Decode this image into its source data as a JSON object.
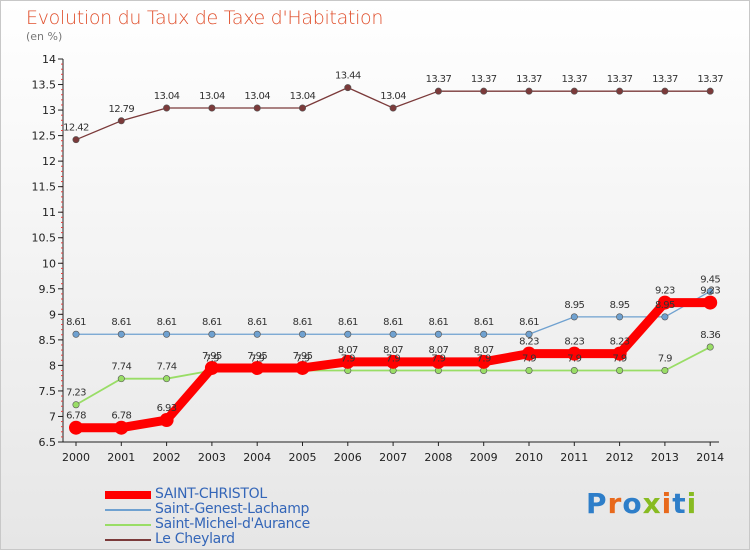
{
  "title": "Evolution du Taux de Taxe d'Habitation",
  "unit": "(en %)",
  "brand": {
    "text": "Proxiti",
    "letter_colors": [
      "#2e7ec9",
      "#e8691c",
      "#2e7ec9",
      "#88bb22",
      "#e8691c",
      "#2e7ec9",
      "#88bb22"
    ]
  },
  "chart_data": {
    "type": "line",
    "x": [
      "2000",
      "2001",
      "2002",
      "2003",
      "2004",
      "2005",
      "2006",
      "2007",
      "2008",
      "2009",
      "2010",
      "2011",
      "2012",
      "2013",
      "2014"
    ],
    "ylim": [
      6.5,
      14
    ],
    "yticks": [
      "6.5",
      "7",
      "7.5",
      "8",
      "8.5",
      "9",
      "9.5",
      "10",
      "10.5",
      "11",
      "11.5",
      "12",
      "12.5",
      "13",
      "13.5",
      "14"
    ],
    "grid": false,
    "legend_position": "bottom-left",
    "series": [
      {
        "name": "SAINT-CHRISTOL",
        "color": "#ff0000",
        "values": [
          6.78,
          6.78,
          6.93,
          7.95,
          7.95,
          7.95,
          8.07,
          8.07,
          8.07,
          8.07,
          8.23,
          8.23,
          8.23,
          9.23,
          9.23
        ],
        "labels": [
          "6.78",
          "6.78",
          "6.93",
          "7.95",
          "7.95",
          "7.95",
          "8.07",
          "8.07",
          "8.07",
          "8.07",
          "8.23",
          "8.23",
          "8.23",
          "9.23",
          "9.23"
        ]
      },
      {
        "name": "Saint-Genest-Lachamp",
        "color": "#6fa1d0",
        "values": [
          8.61,
          8.61,
          8.61,
          8.61,
          8.61,
          8.61,
          8.61,
          8.61,
          8.61,
          8.61,
          8.61,
          8.95,
          8.95,
          8.95,
          9.45
        ],
        "labels": [
          "8.61",
          "8.61",
          "8.61",
          "8.61",
          "8.61",
          "8.61",
          "8.61",
          "8.61",
          "8.61",
          "8.61",
          "8.61",
          "8.95",
          "8.95",
          "8.95",
          "9.45"
        ]
      },
      {
        "name": "Saint-Michel-d'Aurance",
        "color": "#99dd66",
        "values": [
          7.23,
          7.74,
          7.74,
          7.9,
          7.9,
          7.9,
          7.9,
          7.9,
          7.9,
          7.9,
          7.9,
          7.9,
          7.9,
          7.9,
          8.36
        ],
        "labels": [
          "7.23",
          "7.74",
          "7.74",
          "7.9",
          "7.9",
          "7.9",
          "7.9",
          "7.9",
          "7.9",
          "7.9",
          "7.9",
          "7.9",
          "7.9",
          "7.9",
          "8.36"
        ]
      },
      {
        "name": "Le Cheylard",
        "color": "#7b3a3a",
        "values": [
          12.42,
          12.79,
          13.04,
          13.04,
          13.04,
          13.04,
          13.44,
          13.04,
          13.37,
          13.37,
          13.37,
          13.37,
          13.37,
          13.37,
          13.37
        ],
        "labels": [
          "12.42",
          "12.79",
          "13.04",
          "13.04",
          "13.04",
          "13.04",
          "13.44",
          "13.04",
          "13.37",
          "13.37",
          "13.37",
          "13.37",
          "13.37",
          "13.37",
          "13.37"
        ]
      }
    ]
  }
}
